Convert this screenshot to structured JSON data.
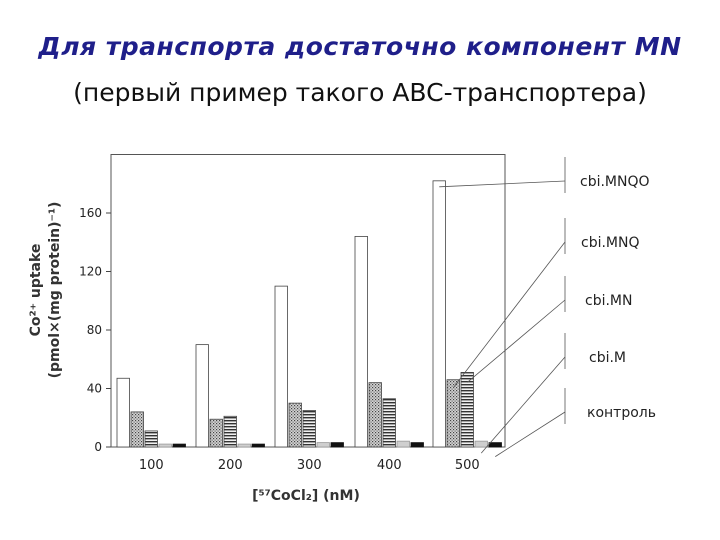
{
  "header": {
    "title": "Для транспорта достаточно компонент MN",
    "subtitle": "(первый пример такого ABC-транспортера)"
  },
  "chart_data": {
    "type": "bar",
    "categories": [
      "100",
      "200",
      "300",
      "400",
      "500"
    ],
    "series": [
      {
        "name": "cbi.MNQO",
        "values": [
          47,
          70,
          110,
          144,
          182
        ]
      },
      {
        "name": "cbi.MNQ",
        "values": [
          24,
          19,
          30,
          44,
          46
        ]
      },
      {
        "name": "cbi.MN",
        "values": [
          11,
          21,
          25,
          33,
          51
        ]
      },
      {
        "name": "cbi.M",
        "values": [
          2,
          2,
          3,
          4,
          4
        ]
      },
      {
        "name": "контроль",
        "values": [
          2,
          2,
          3,
          3,
          3
        ]
      }
    ],
    "yticks": [
      "0",
      "40",
      "80",
      "120",
      "160"
    ],
    "ylim": [
      0,
      200
    ],
    "ylabel_line1": "Co²⁺ uptake",
    "ylabel_line2": "(pmol×(mg protein)⁻¹)",
    "xlabel": "[⁵⁷CoCl₂] (nM)",
    "legend_placement": "right"
  }
}
